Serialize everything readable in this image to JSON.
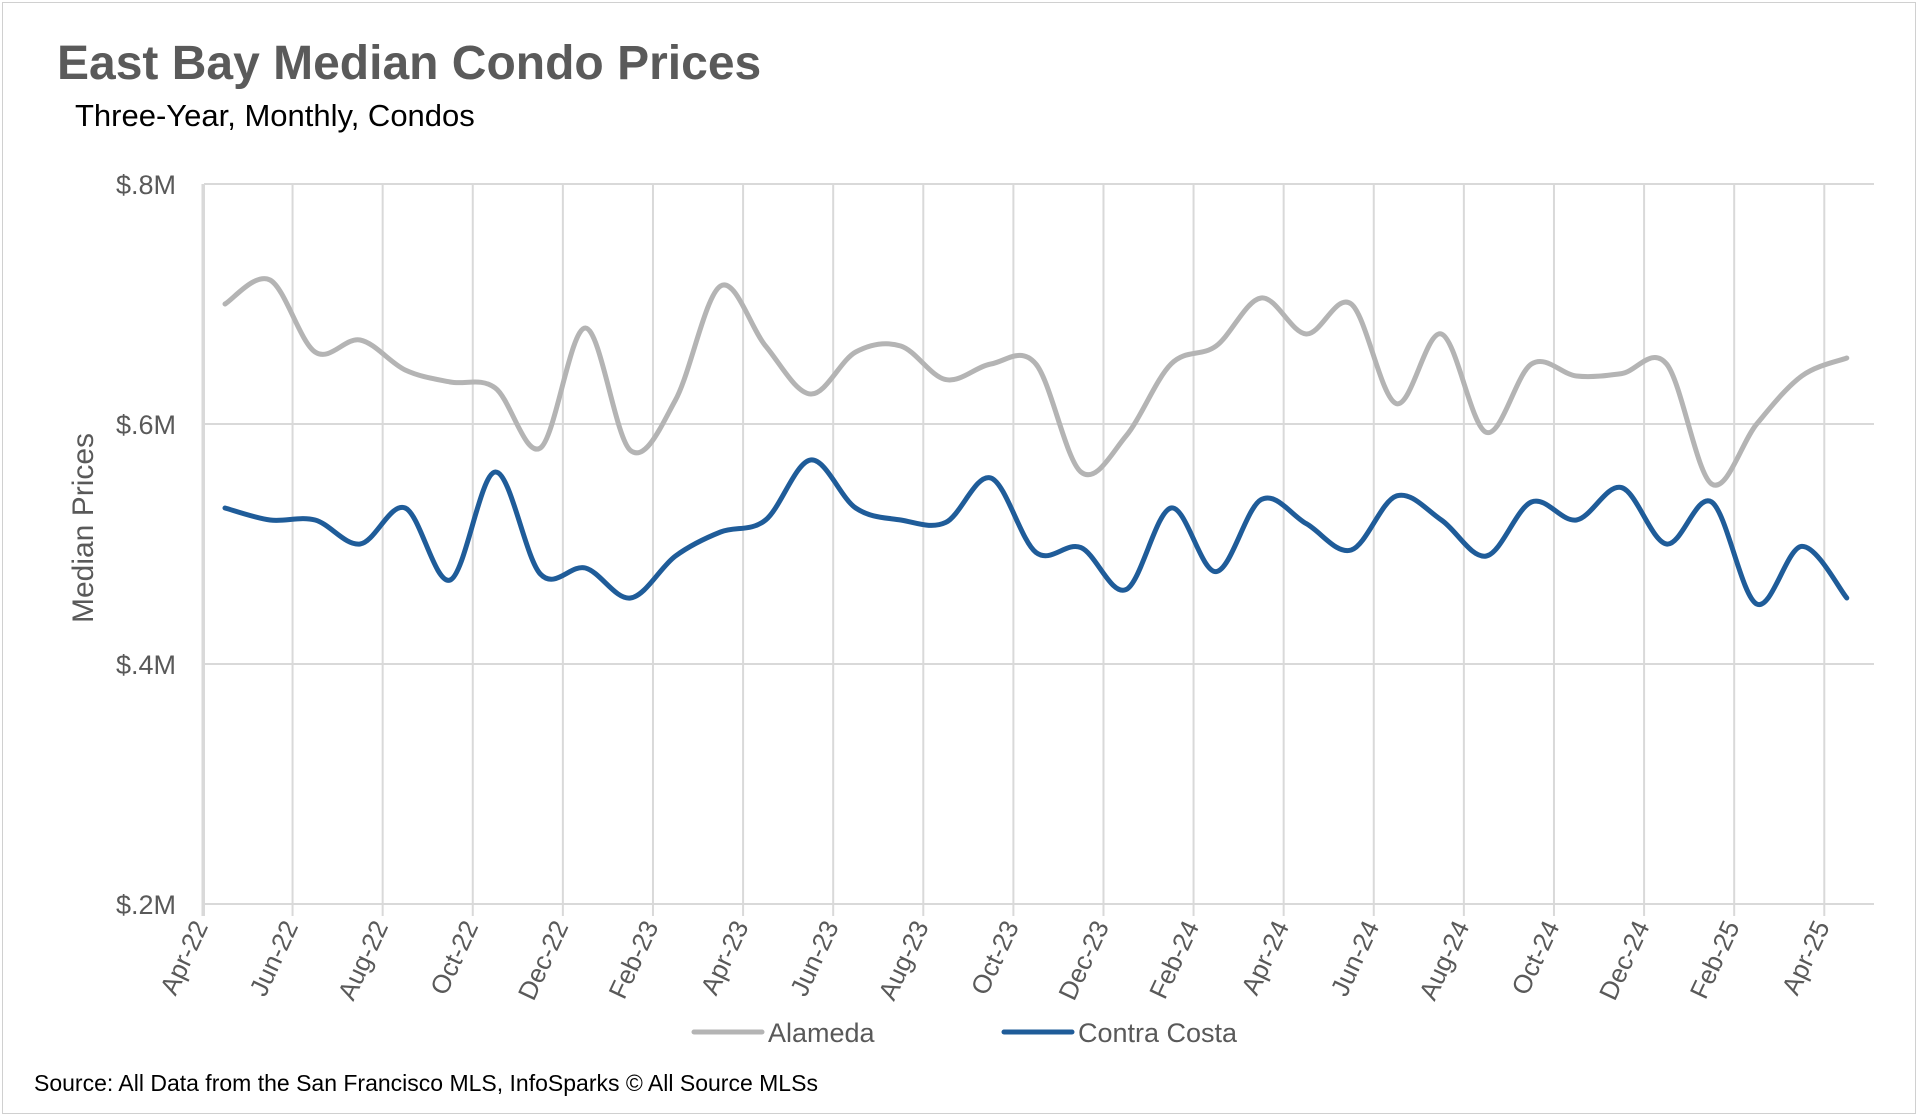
{
  "chart_data": {
    "type": "line",
    "title": "East Bay Median Condo Prices",
    "subtitle": "Three-Year, Monthly, Condos",
    "ylabel": "Median Prices",
    "xlabel": "",
    "ylim": [
      0.2,
      0.8
    ],
    "y_ticks": [
      0.2,
      0.4,
      0.6,
      0.8
    ],
    "y_tick_labels": [
      "$.2M",
      "$.4M",
      "$.6M",
      "$.8M"
    ],
    "grid": true,
    "legend_position": "bottom",
    "categories": [
      "Apr-22",
      "May-22",
      "Jun-22",
      "Jul-22",
      "Aug-22",
      "Sep-22",
      "Oct-22",
      "Nov-22",
      "Dec-22",
      "Jan-23",
      "Feb-23",
      "Mar-23",
      "Apr-23",
      "May-23",
      "Jun-23",
      "Jul-23",
      "Aug-23",
      "Sep-23",
      "Oct-23",
      "Nov-23",
      "Dec-23",
      "Jan-24",
      "Feb-24",
      "Mar-24",
      "Apr-24",
      "May-24",
      "Jun-24",
      "Jul-24",
      "Aug-24",
      "Sep-24",
      "Oct-24",
      "Nov-24",
      "Dec-24",
      "Jan-25",
      "Feb-25",
      "Mar-25",
      "Apr-25"
    ],
    "tick_labels": [
      "Apr-22",
      "Jun-22",
      "Aug-22",
      "Oct-22",
      "Dec-22",
      "Feb-23",
      "Apr-23",
      "Jun-23",
      "Aug-23",
      "Oct-23",
      "Dec-23",
      "Feb-24",
      "Apr-24",
      "Jun-24",
      "Aug-24",
      "Oct-24",
      "Dec-24",
      "Feb-25",
      "Apr-25"
    ],
    "series": [
      {
        "name": "Alameda",
        "color": "#b4b4b4",
        "values": [
          0.7,
          0.72,
          0.66,
          0.67,
          0.645,
          0.635,
          0.63,
          0.58,
          0.68,
          0.578,
          0.62,
          0.715,
          0.665,
          0.625,
          0.66,
          0.665,
          0.637,
          0.65,
          0.65,
          0.56,
          0.59,
          0.65,
          0.665,
          0.705,
          0.675,
          0.7,
          0.617,
          0.675,
          0.593,
          0.65,
          0.64,
          0.642,
          0.65,
          0.55,
          0.6,
          0.64,
          0.655
        ]
      },
      {
        "name": "Contra Costa",
        "color": "#1f5c99",
        "values": [
          0.53,
          0.52,
          0.52,
          0.5,
          0.53,
          0.47,
          0.56,
          0.475,
          0.48,
          0.455,
          0.49,
          0.51,
          0.52,
          0.57,
          0.53,
          0.52,
          0.518,
          0.555,
          0.493,
          0.497,
          0.462,
          0.53,
          0.477,
          0.537,
          0.517,
          0.495,
          0.54,
          0.52,
          0.49,
          0.535,
          0.52,
          0.547,
          0.5,
          0.535,
          0.45,
          0.498,
          0.455
        ]
      }
    ]
  },
  "source_note": "Source: All Data from the San Francisco MLS, InfoSparks © All Source MLSs"
}
